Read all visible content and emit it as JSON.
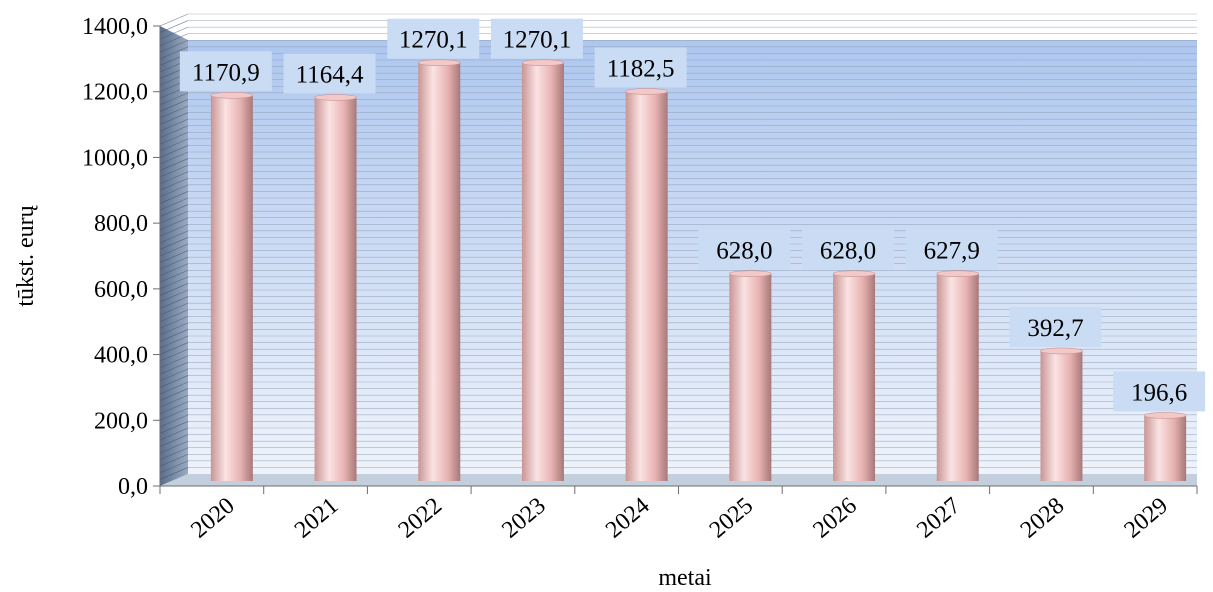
{
  "chart_data": {
    "type": "bar",
    "categories": [
      "2020",
      "2021",
      "2022",
      "2023",
      "2024",
      "2025",
      "2026",
      "2027",
      "2028",
      "2029"
    ],
    "values": [
      1170.9,
      1164.4,
      1270.1,
      1270.1,
      1182.5,
      628.0,
      628.0,
      627.9,
      392.7,
      196.6
    ],
    "data_labels": [
      "1170,9",
      "1164,4",
      "1270,1",
      "1270,1",
      "1182,5",
      "628,0",
      "628,0",
      "627,9",
      "392,7",
      "196,6"
    ],
    "y_ticks": [
      "0,0",
      "200,0",
      "400,0",
      "600,0",
      "800,0",
      "1000,0",
      "1200,0",
      "1400,0"
    ],
    "ylim": [
      0,
      1400
    ],
    "xlabel": "metai",
    "ylabel": "tūkst. eurų",
    "grid": true,
    "colors": {
      "bar": "#e8b3b3",
      "bar_highlight": "#fbe3e3",
      "bar_shadow": "#a87878",
      "label_bg": "#c9dcf3",
      "wall_top": "#aec7ef",
      "wall_bottom": "#eef3fb",
      "gridline": "#8d9bb0"
    }
  }
}
